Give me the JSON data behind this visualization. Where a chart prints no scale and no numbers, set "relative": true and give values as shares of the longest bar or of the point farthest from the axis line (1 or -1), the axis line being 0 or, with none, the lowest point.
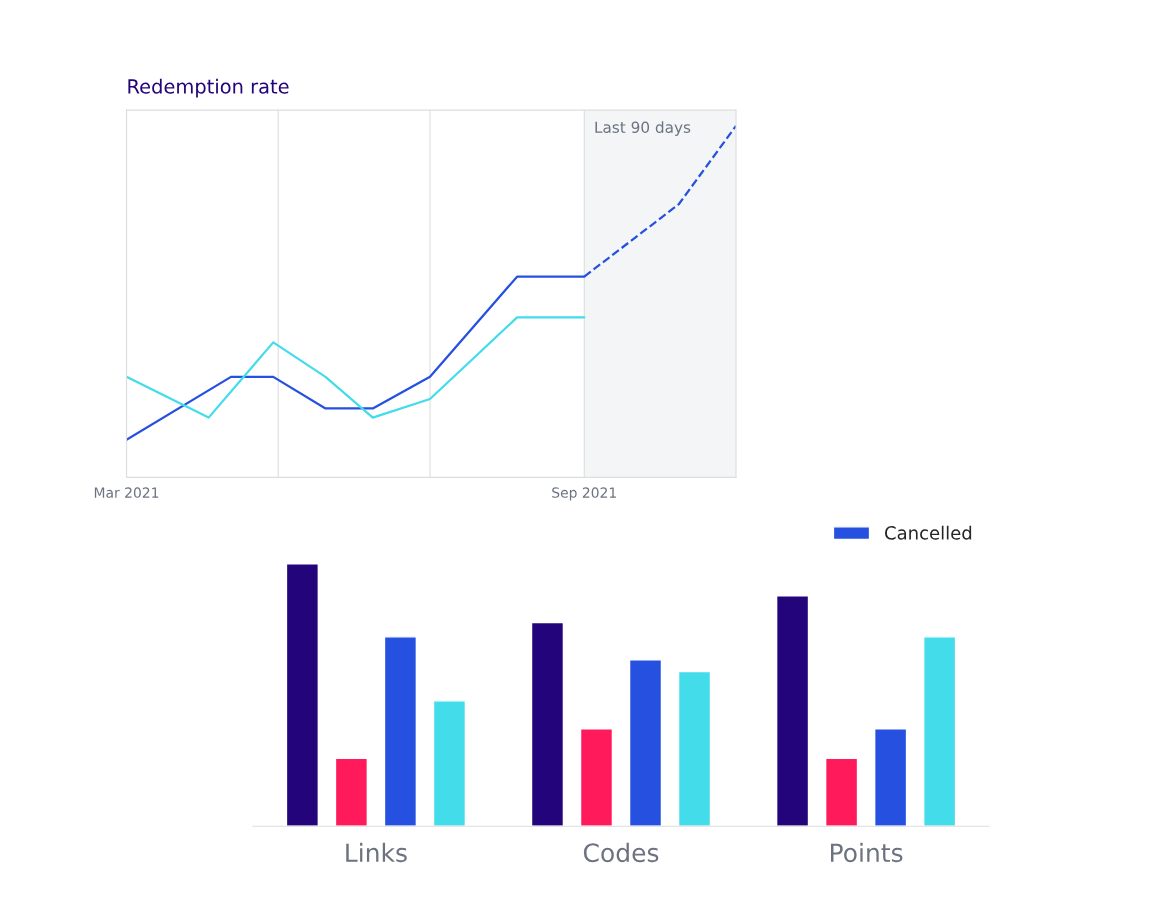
{
  "chart_data": [
    {
      "type": "line",
      "title": "Redemption rate",
      "relative": true,
      "grid": "x",
      "marker": "none",
      "xlim": [
        "2021-03-01",
        "2021-11-01"
      ],
      "xticks": [
        {
          "value": "2021-03-01",
          "label": "Mar 2021"
        },
        {
          "value": "2021-05-01",
          "label": null
        },
        {
          "value": "2021-07-01",
          "label": null
        },
        {
          "value": "2021-09-01",
          "label": "Sep 2021"
        }
      ],
      "bands": [
        {
          "axis": "x",
          "from": "2021-09-01",
          "to": "2021-11-01",
          "label": "Last 90 days",
          "color": "#f3f5f7"
        }
      ],
      "series": [
        {
          "color": "#2550e0",
          "line_style": "solid",
          "x": [
            "2021-03-01",
            "2021-04-12",
            "2021-04-29",
            "2021-05-20",
            "2021-06-08",
            "2021-07-01",
            "2021-08-05",
            "2021-09-01"
          ],
          "values": [
            0.107,
            0.286,
            0.286,
            0.196,
            0.196,
            0.286,
            0.571,
            0.571
          ]
        },
        {
          "color": "#2550e0",
          "line_style": "dashed",
          "x": [
            "2021-09-01",
            "2021-10-09",
            "2021-11-01"
          ],
          "values": [
            0.571,
            0.777,
            1.0
          ]
        },
        {
          "color": "#42dcea",
          "line_style": "solid",
          "x": [
            "2021-03-01",
            "2021-04-03",
            "2021-04-29",
            "2021-05-20",
            "2021-06-08",
            "2021-07-01",
            "2021-08-05",
            "2021-09-01"
          ],
          "values": [
            0.286,
            0.17,
            0.384,
            0.286,
            0.17,
            0.223,
            0.455,
            0.455
          ]
        }
      ]
    },
    {
      "type": "bar",
      "relative": true,
      "categories": [
        "Links",
        "Codes",
        "Points"
      ],
      "legend": "top right",
      "series": [
        {
          "color": "#24047a",
          "values": [
            1.0,
            0.776,
            0.878
          ]
        },
        {
          "color": "#ff1a5c",
          "values": [
            0.259,
            0.371,
            0.259
          ]
        },
        {
          "name": "Cancelled",
          "color": "#2550e0",
          "values": [
            0.722,
            0.634,
            0.371
          ]
        },
        {
          "color": "#42dcea",
          "values": [
            0.478,
            0.59,
            0.722
          ]
        }
      ]
    }
  ]
}
